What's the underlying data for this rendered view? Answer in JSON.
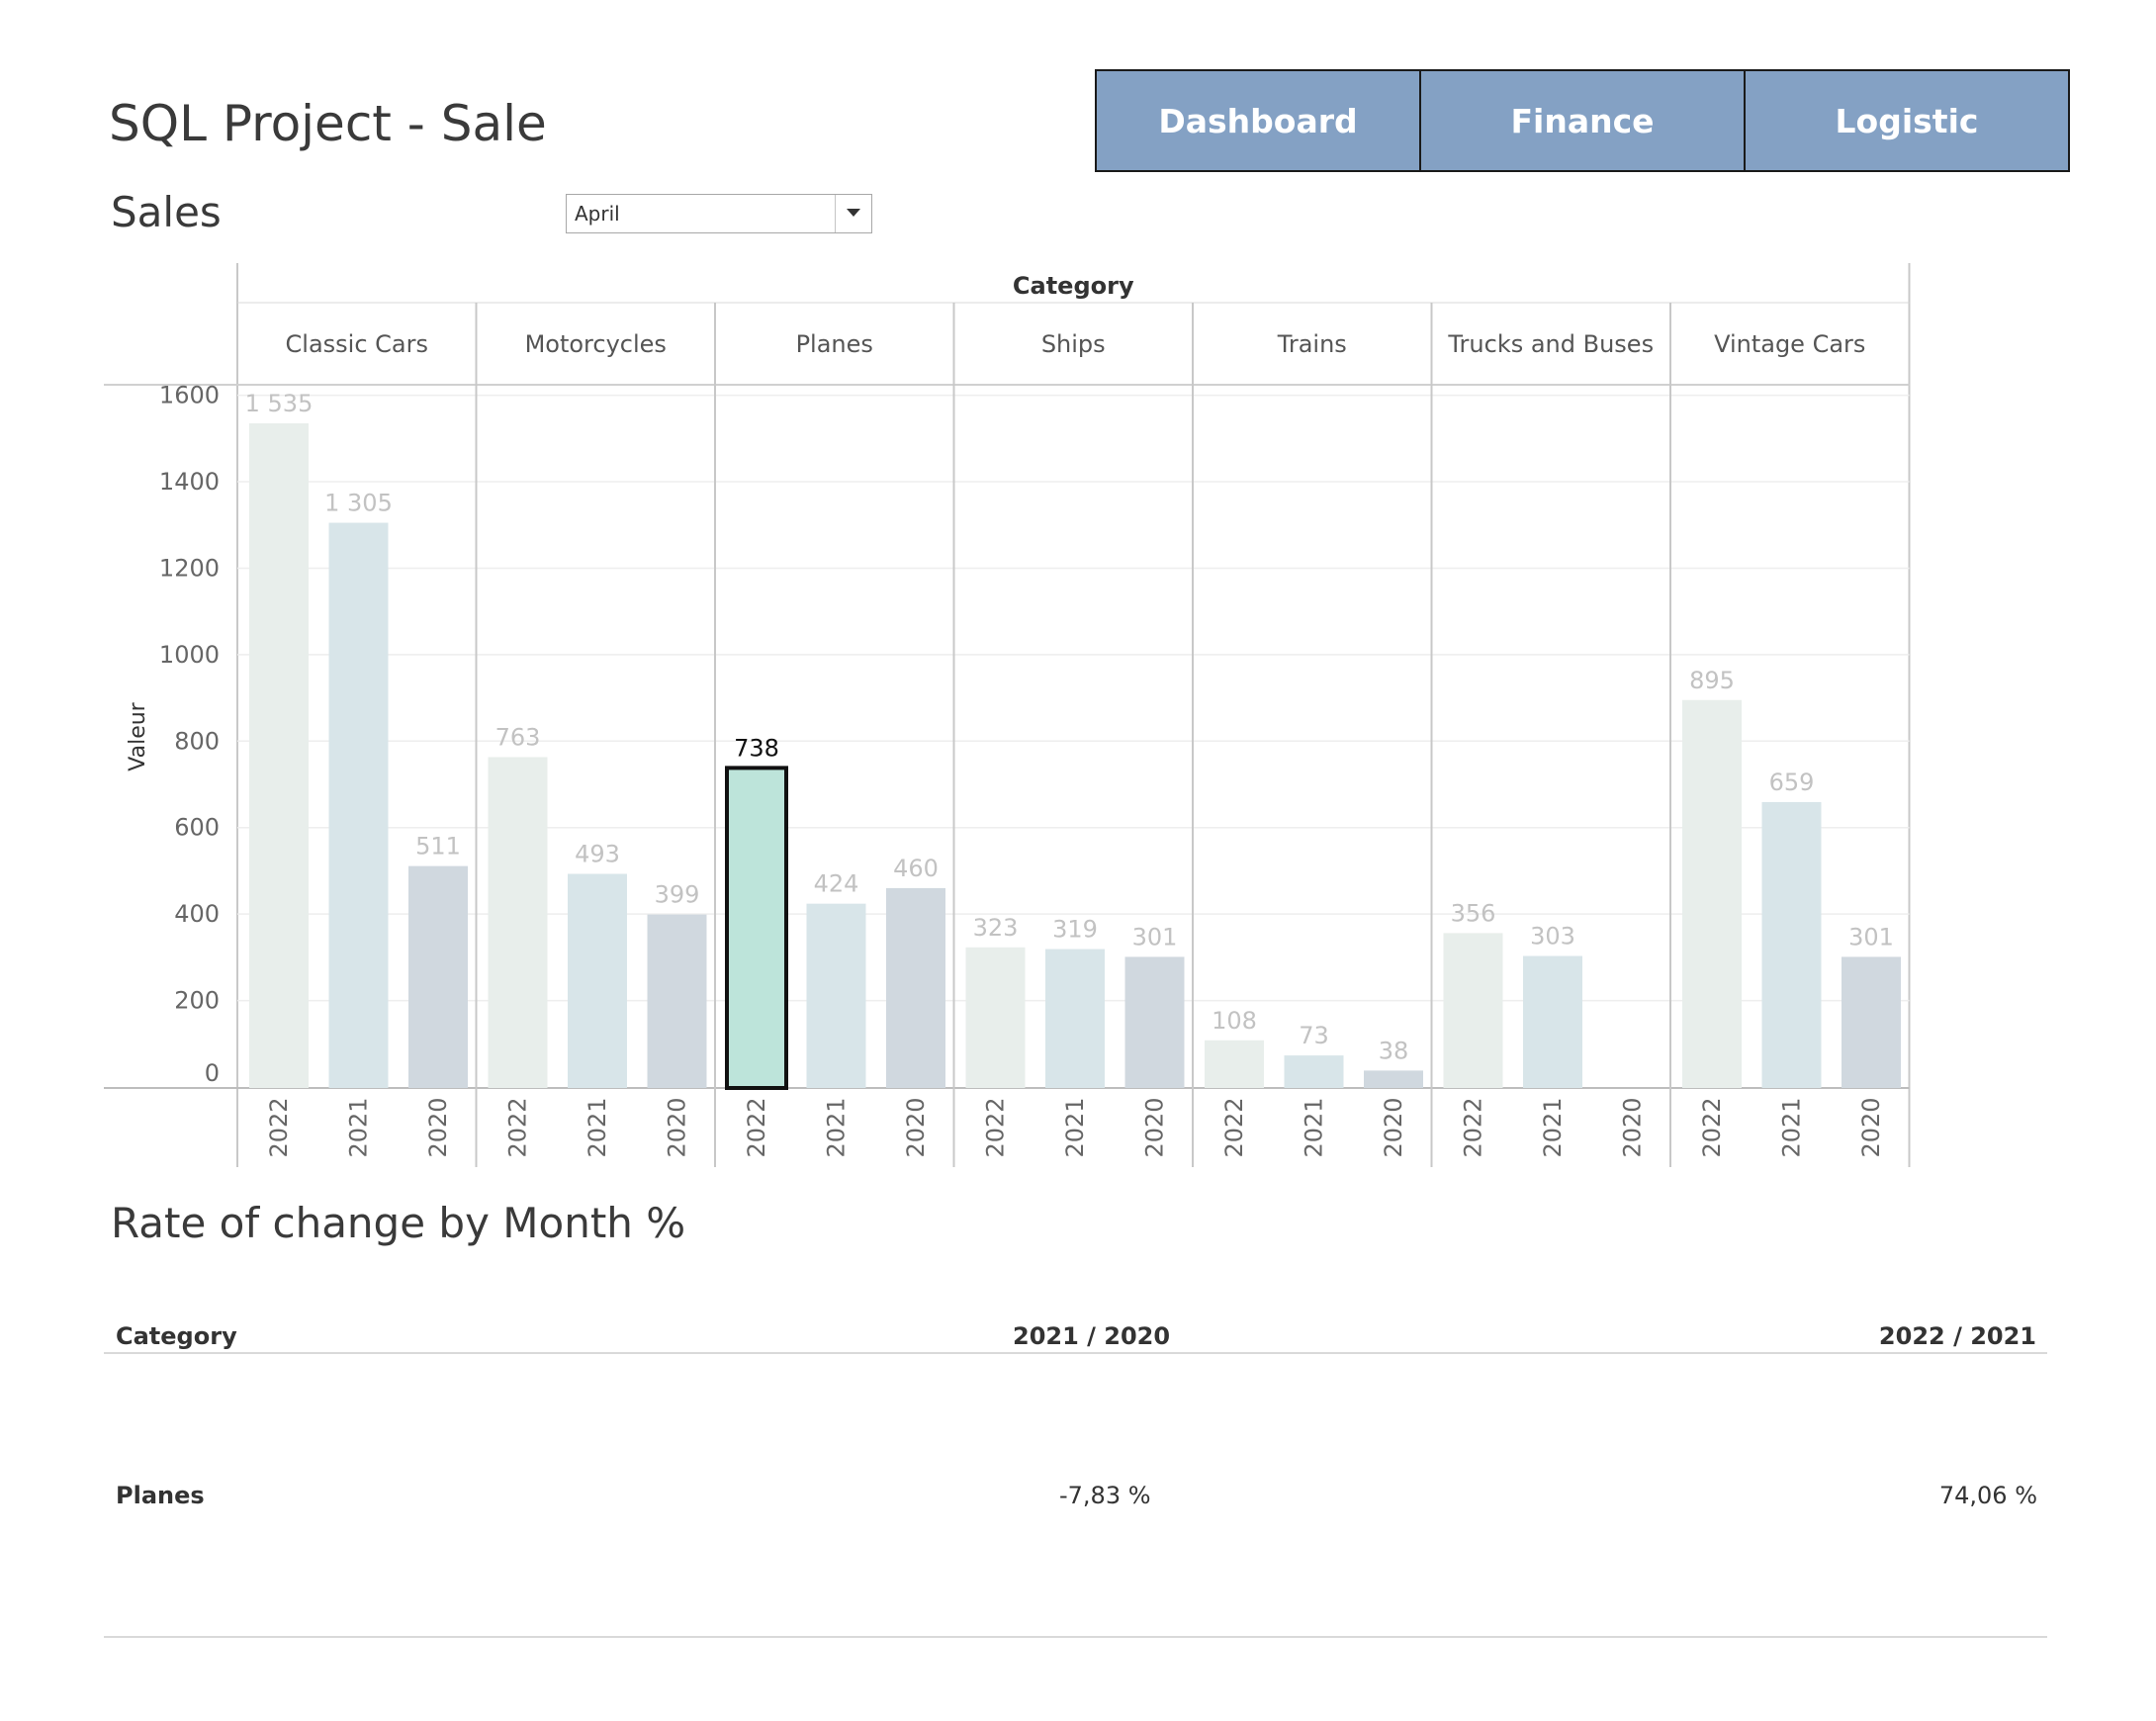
{
  "header": {
    "title": "SQL Project - Sale",
    "nav": [
      "Dashboard",
      "Finance",
      "Logistic"
    ]
  },
  "sales": {
    "title": "Sales",
    "month_filter": "April"
  },
  "chart_data": {
    "type": "bar",
    "column_header": "Category",
    "ylabel": "Valeur",
    "ylim": [
      0,
      1600
    ],
    "yticks": [
      0,
      200,
      400,
      600,
      800,
      1000,
      1200,
      1400,
      1600
    ],
    "grid": true,
    "categories": [
      "Classic Cars",
      "Motorcycles",
      "Planes",
      "Ships",
      "Trains",
      "Trucks and Buses",
      "Vintage Cars"
    ],
    "years": [
      "2022",
      "2021",
      "2020"
    ],
    "values": [
      [
        1535,
        1305,
        511
      ],
      [
        763,
        493,
        399
      ],
      [
        738,
        424,
        460
      ],
      [
        323,
        319,
        301
      ],
      [
        108,
        73,
        38
      ],
      [
        356,
        303,
        null
      ],
      [
        895,
        659,
        301
      ]
    ],
    "labels": [
      [
        "1 535",
        "1 305",
        "511"
      ],
      [
        "763",
        "493",
        "399"
      ],
      [
        "738",
        "424",
        "460"
      ],
      [
        "323",
        "319",
        "301"
      ],
      [
        "108",
        "73",
        "38"
      ],
      [
        "356",
        "303",
        ""
      ],
      [
        "895",
        "659",
        "301"
      ]
    ],
    "year_colors": {
      "2022": "#e8eeeb",
      "2021": "#d8e5e9",
      "2020": "#d0d8df"
    },
    "highlight": {
      "category": "Planes",
      "year": "2022",
      "color": "#bde4da"
    }
  },
  "rate_of_change": {
    "title": "Rate of change by Month %",
    "headers": [
      "Category",
      "2021 / 2020",
      "2022 / 2021"
    ],
    "rows": [
      {
        "category": "Planes",
        "r2021_2020": "-7,83 %",
        "r2022_2021": "74,06 %"
      }
    ]
  }
}
